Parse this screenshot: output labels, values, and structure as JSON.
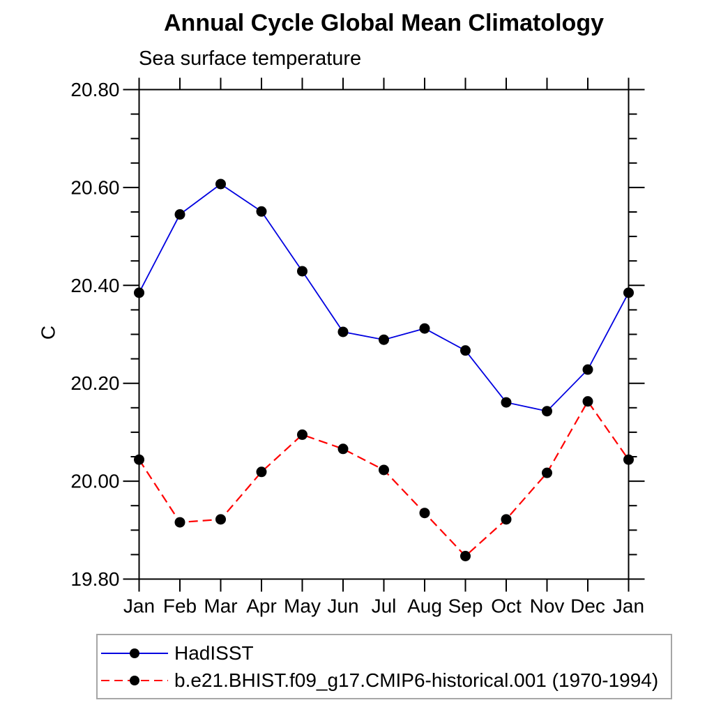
{
  "page": {
    "title": "Annual Cycle Global Mean Climatology",
    "subtitle": "Sea surface temperature"
  },
  "chart_data": {
    "type": "line",
    "title": "Annual Cycle Global Mean Climatology",
    "subtitle": "Sea surface temperature",
    "xlabel": "",
    "ylabel": "C",
    "categories": [
      "Jan",
      "Feb",
      "Mar",
      "Apr",
      "May",
      "Jun",
      "Jul",
      "Aug",
      "Sep",
      "Oct",
      "Nov",
      "Dec",
      "Jan"
    ],
    "ylim": [
      19.8,
      20.8
    ],
    "ytick_labels": [
      "19.80",
      "20.00",
      "20.20",
      "20.40",
      "20.60",
      "20.80"
    ],
    "ytick_major_step": 0.2,
    "ytick_minor_step": 0.05,
    "grid": false,
    "legend_position": "bottom-left-box",
    "axis_color": "#000000",
    "marker_color": "#000000",
    "series": [
      {
        "name": "HadISST",
        "color": "#0000e0",
        "line_style": "solid",
        "marker": "filled-circle",
        "values": [
          20.385,
          20.545,
          20.607,
          20.551,
          20.429,
          20.305,
          20.289,
          20.312,
          20.267,
          20.161,
          20.143,
          20.228,
          20.385
        ]
      },
      {
        "name": "b.e21.BHIST.f09_g17.CMIP6-historical.001 (1970-1994)",
        "color": "#ff0000",
        "line_style": "dashed",
        "marker": "filled-circle",
        "values": [
          20.044,
          19.916,
          19.922,
          20.019,
          20.095,
          20.066,
          20.023,
          19.935,
          19.847,
          19.922,
          20.017,
          20.163,
          20.044
        ]
      }
    ]
  }
}
